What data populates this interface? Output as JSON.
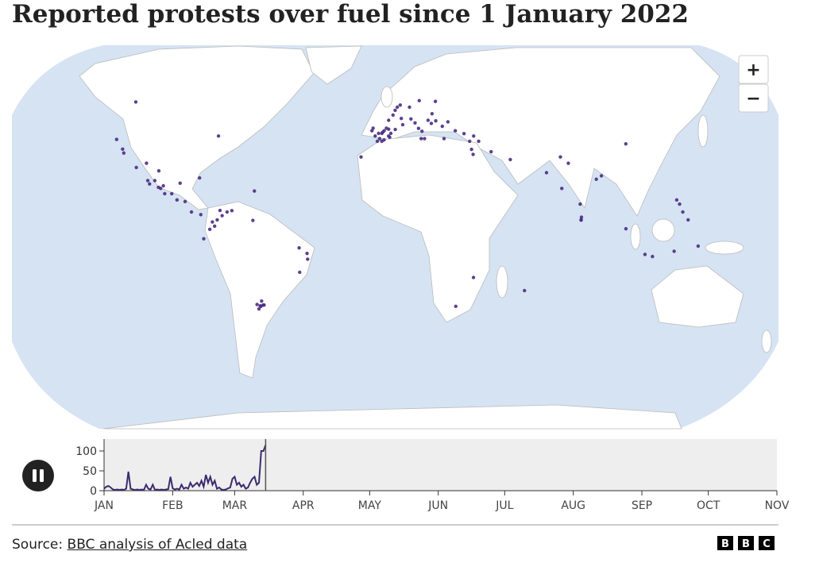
{
  "title": "Reported protests over fuel since 1 January 2022",
  "zoom_in": "+",
  "zoom_out": "−",
  "map": {
    "color": "#4b2c7f",
    "points": [
      [
        -4,
        40
      ],
      [
        -3,
        41
      ],
      [
        -5,
        38
      ],
      [
        -1,
        39
      ],
      [
        -6,
        37
      ],
      [
        -2,
        42
      ],
      [
        -8,
        42
      ],
      [
        -4,
        37
      ],
      [
        -3,
        37.5
      ],
      [
        -0.5,
        38.5
      ],
      [
        0,
        40
      ],
      [
        2,
        41.5
      ],
      [
        -3.7,
        40.4
      ],
      [
        -5.5,
        40
      ],
      [
        -1,
        41.6
      ],
      [
        -7,
        39
      ],
      [
        -8.5,
        41
      ],
      [
        2,
        48.8
      ],
      [
        4.8,
        45.7
      ],
      [
        5.4,
        43.3
      ],
      [
        -1,
        45
      ],
      [
        3,
        50
      ],
      [
        1,
        47
      ],
      [
        12.5,
        41.9
      ],
      [
        9.2,
        45.5
      ],
      [
        14,
        40.8
      ],
      [
        11,
        44
      ],
      [
        15,
        38
      ],
      [
        13.5,
        38
      ],
      [
        4.4,
        50.8
      ],
      [
        13.4,
        52.5
      ],
      [
        8.7,
        50
      ],
      [
        21,
        52.2
      ],
      [
        23.7,
        38
      ],
      [
        20.5,
        44.8
      ],
      [
        17,
        45
      ],
      [
        18.4,
        43.8
      ],
      [
        26,
        44.4
      ],
      [
        23.3,
        42.7
      ],
      [
        19,
        47.5
      ],
      [
        29,
        41
      ],
      [
        32.8,
        39.9
      ],
      [
        35,
        37
      ],
      [
        39,
        37
      ],
      [
        37,
        39
      ],
      [
        44,
        33
      ],
      [
        35.5,
        33.9
      ],
      [
        36,
        32
      ],
      [
        52,
        30
      ],
      [
        67,
        25
      ],
      [
        74,
        31
      ],
      [
        77,
        28.6
      ],
      [
        88,
        22.5
      ],
      [
        80,
        13
      ],
      [
        72.8,
        19
      ],
      [
        80,
        7
      ],
      [
        80,
        6.9
      ],
      [
        80.2,
        8
      ],
      [
        90.4,
        23.8
      ],
      [
        104,
        36
      ],
      [
        121,
        14.6
      ],
      [
        122,
        13
      ],
      [
        123,
        10
      ],
      [
        125,
        7
      ],
      [
        106.8,
        -6.2
      ],
      [
        98.7,
        3.6
      ],
      [
        110,
        -7
      ],
      [
        119,
        -5
      ],
      [
        129,
        -3
      ],
      [
        35,
        -15
      ],
      [
        57,
        -20
      ],
      [
        28,
        -26
      ],
      [
        -13,
        31
      ],
      [
        -120,
        52
      ],
      [
        -118,
        34
      ],
      [
        -122,
        37.7
      ],
      [
        -77,
        39
      ],
      [
        -99,
        19.4
      ],
      [
        -103,
        20.7
      ],
      [
        -100,
        25.7
      ],
      [
        -106,
        28.6
      ],
      [
        -98,
        19
      ],
      [
        -96,
        17
      ],
      [
        -97,
        20
      ],
      [
        -101,
        22
      ],
      [
        -104,
        22
      ],
      [
        -93,
        17
      ],
      [
        -90,
        21
      ],
      [
        -110,
        27
      ],
      [
        -117,
        32.5
      ],
      [
        -90.5,
        14.6
      ],
      [
        -87,
        14
      ],
      [
        -84,
        10
      ],
      [
        -80,
        9
      ],
      [
        -82,
        23
      ],
      [
        -58,
        18
      ],
      [
        -74,
        4.6
      ],
      [
        -75,
        6.2
      ],
      [
        -76,
        3.4
      ],
      [
        -73,
        7
      ],
      [
        -67,
        10.5
      ],
      [
        -69,
        10
      ],
      [
        -72,
        10.6
      ],
      [
        -71,
        8.6
      ],
      [
        -78.5,
        -0.2
      ],
      [
        -58,
        6.8
      ],
      [
        -35,
        -8
      ],
      [
        -38.5,
        -3.7
      ],
      [
        -35.2,
        -5.8
      ],
      [
        -38.5,
        -13
      ],
      [
        -57.6,
        -25.3
      ],
      [
        -56,
        -26
      ],
      [
        -55,
        -25.5
      ],
      [
        -57,
        -27
      ],
      [
        -55.5,
        -24
      ],
      [
        -54.6,
        -25.5
      ],
      [
        -56.3,
        -25.8
      ]
    ]
  },
  "chart_data": {
    "type": "line",
    "color": "#3d2a6e",
    "background": "#eeeeee",
    "x": [
      0,
      1,
      2,
      3,
      4,
      5,
      6,
      7,
      8,
      9,
      10,
      11,
      12,
      13,
      14,
      15,
      16,
      17,
      18,
      19,
      20,
      21,
      22,
      23,
      24,
      25,
      26,
      27,
      28,
      29,
      30,
      31,
      32,
      33,
      34,
      35,
      36,
      37,
      38,
      39,
      40,
      41,
      42,
      43,
      44,
      45,
      46,
      47,
      48,
      49,
      50,
      51,
      52,
      53,
      54,
      55,
      56,
      57,
      58,
      59,
      60,
      61,
      62,
      63,
      64,
      65,
      66,
      67,
      68,
      69,
      70,
      71,
      72,
      73
    ],
    "values": [
      5,
      10,
      12,
      8,
      3,
      2,
      3,
      2,
      3,
      2,
      5,
      48,
      5,
      3,
      2,
      3,
      2,
      3,
      2,
      15,
      5,
      3,
      15,
      2,
      3,
      2,
      3,
      2,
      3,
      4,
      35,
      6,
      3,
      5,
      3,
      15,
      5,
      8,
      5,
      20,
      10,
      15,
      20,
      12,
      25,
      10,
      40,
      20,
      35,
      15,
      25,
      5,
      8,
      3,
      2,
      3,
      6,
      8,
      30,
      35,
      15,
      20,
      10,
      15,
      5,
      8,
      20,
      30,
      35,
      15,
      20,
      100,
      100,
      115
    ],
    "xlim": [
      0,
      304
    ],
    "ylim": [
      0,
      130
    ],
    "xticks": [
      {
        "value": 0,
        "label": "JAN"
      },
      {
        "value": 31,
        "label": "FEB"
      },
      {
        "value": 59,
        "label": "MAR"
      },
      {
        "value": 90,
        "label": "APR"
      },
      {
        "value": 120,
        "label": "MAY"
      },
      {
        "value": 151,
        "label": "JUN"
      },
      {
        "value": 181,
        "label": "JUL"
      },
      {
        "value": 212,
        "label": "AUG"
      },
      {
        "value": 243,
        "label": "SEP"
      },
      {
        "value": 273,
        "label": "OCT"
      },
      {
        "value": 304,
        "label": "NOV"
      }
    ],
    "yticks": [
      0,
      50,
      100
    ]
  },
  "source_label": "Source:",
  "source_link": "BBC analysis of Acled data",
  "logo": [
    "B",
    "B",
    "C"
  ]
}
